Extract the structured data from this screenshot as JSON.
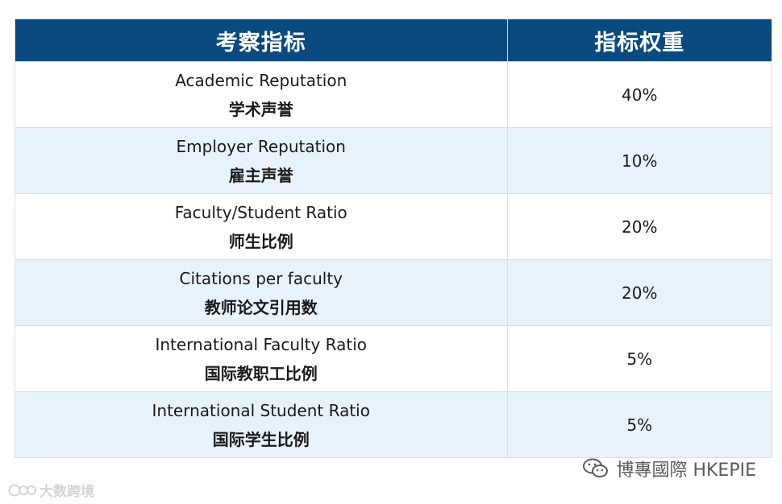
{
  "table": {
    "headers": [
      "考察指标",
      "指标权重"
    ],
    "rows": [
      {
        "en": "Academic Reputation",
        "cn": "学术声誉",
        "weight": "40%"
      },
      {
        "en": "Employer Reputation",
        "cn": "雇主声誉",
        "weight": "10%"
      },
      {
        "en": "Faculty/Student Ratio",
        "cn": "师生比例",
        "weight": "20%"
      },
      {
        "en": "Citations per faculty",
        "cn": "教师论文引用数",
        "weight": "20%"
      },
      {
        "en": "International Faculty Ratio",
        "cn": "国际教职工比例",
        "weight": "5%"
      },
      {
        "en": "International Student Ratio",
        "cn": "国际学生比例",
        "weight": "5%"
      }
    ]
  },
  "watermarks": {
    "left_text": "大数跨境",
    "left_icon": "chat-bubble-icon",
    "right_text": "博專國際 HKEPIE",
    "right_icon": "wechat-icon"
  },
  "colors": {
    "header_bg": "#0b4a80",
    "header_text": "#ffffff",
    "stripe_bg": "#e7f2fb",
    "border": "#d9dee5"
  }
}
